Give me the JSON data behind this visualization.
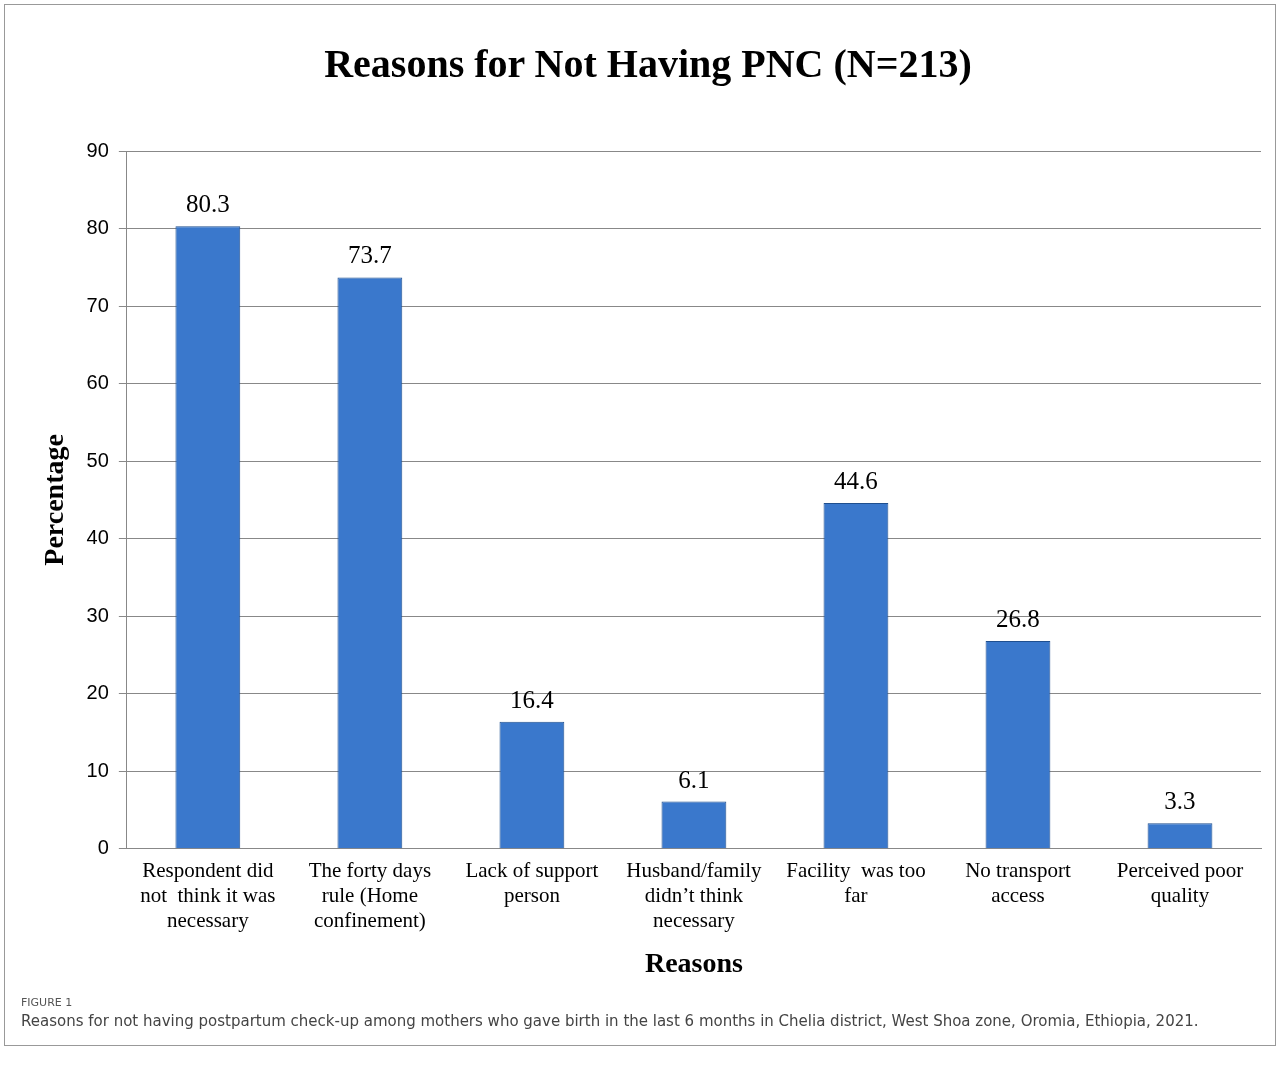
{
  "chart_data": {
    "type": "bar",
    "title": "Reasons for Not Having PNC (N=213)",
    "xlabel": "Reasons",
    "ylabel": "Percentage",
    "categories": [
      "Respondent did not  think it was necessary",
      "The forty days rule (Home confinement)",
      "Lack of support person",
      "Husband/family didn’t think necessary",
      "Facility  was too far",
      "No transport access",
      "Perceived poor quality"
    ],
    "values": [
      80.3,
      73.7,
      16.4,
      6.1,
      44.6,
      26.8,
      3.3
    ],
    "color": "#3a78cc",
    "ylim": [
      0,
      90
    ],
    "yticks": [
      0,
      10,
      20,
      30,
      40,
      50,
      60,
      70,
      80,
      90
    ],
    "grid": "y",
    "legend": false,
    "data_labels": true,
    "annotations": [
      "FIGURE 1",
      "Reasons for not having postpartum check-up among mothers who gave birth in the last 6 months in Chelia district, West Shoa zone, Oromia, Ethiopia, 2021."
    ]
  }
}
